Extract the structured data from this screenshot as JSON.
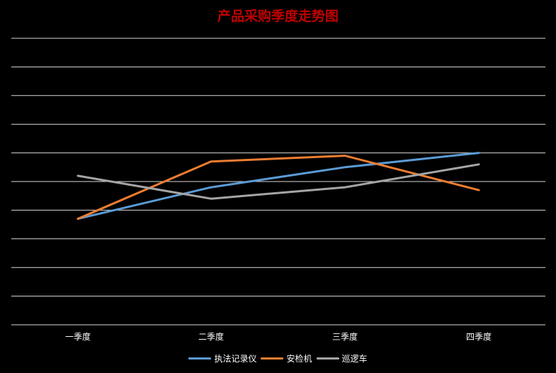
{
  "chart_data": {
    "type": "line",
    "title": "产品采购季度走势图",
    "xlabel": "",
    "ylabel": "",
    "categories": [
      "一季度",
      "二季度",
      "三季度",
      "四季度"
    ],
    "series": [
      {
        "name": "执法记录仪",
        "color": "#5b9bd5",
        "values": [
          3.7,
          4.8,
          5.5,
          6.0
        ]
      },
      {
        "name": "安检机",
        "color": "#ed7d31",
        "values": [
          3.7,
          5.7,
          5.9,
          4.7
        ]
      },
      {
        "name": "巡逻车",
        "color": "#a5a5a5",
        "values": [
          5.2,
          4.4,
          4.8,
          5.6
        ]
      }
    ],
    "ylim": [
      0,
      10
    ],
    "y_gridlines": 11,
    "y_tick_labels_visible": false,
    "grid": true,
    "legend_position": "bottom"
  },
  "colors": {
    "background": "#000000",
    "title": "#c00000",
    "gridline": "#d9d9d9",
    "text": "#ffffff"
  }
}
